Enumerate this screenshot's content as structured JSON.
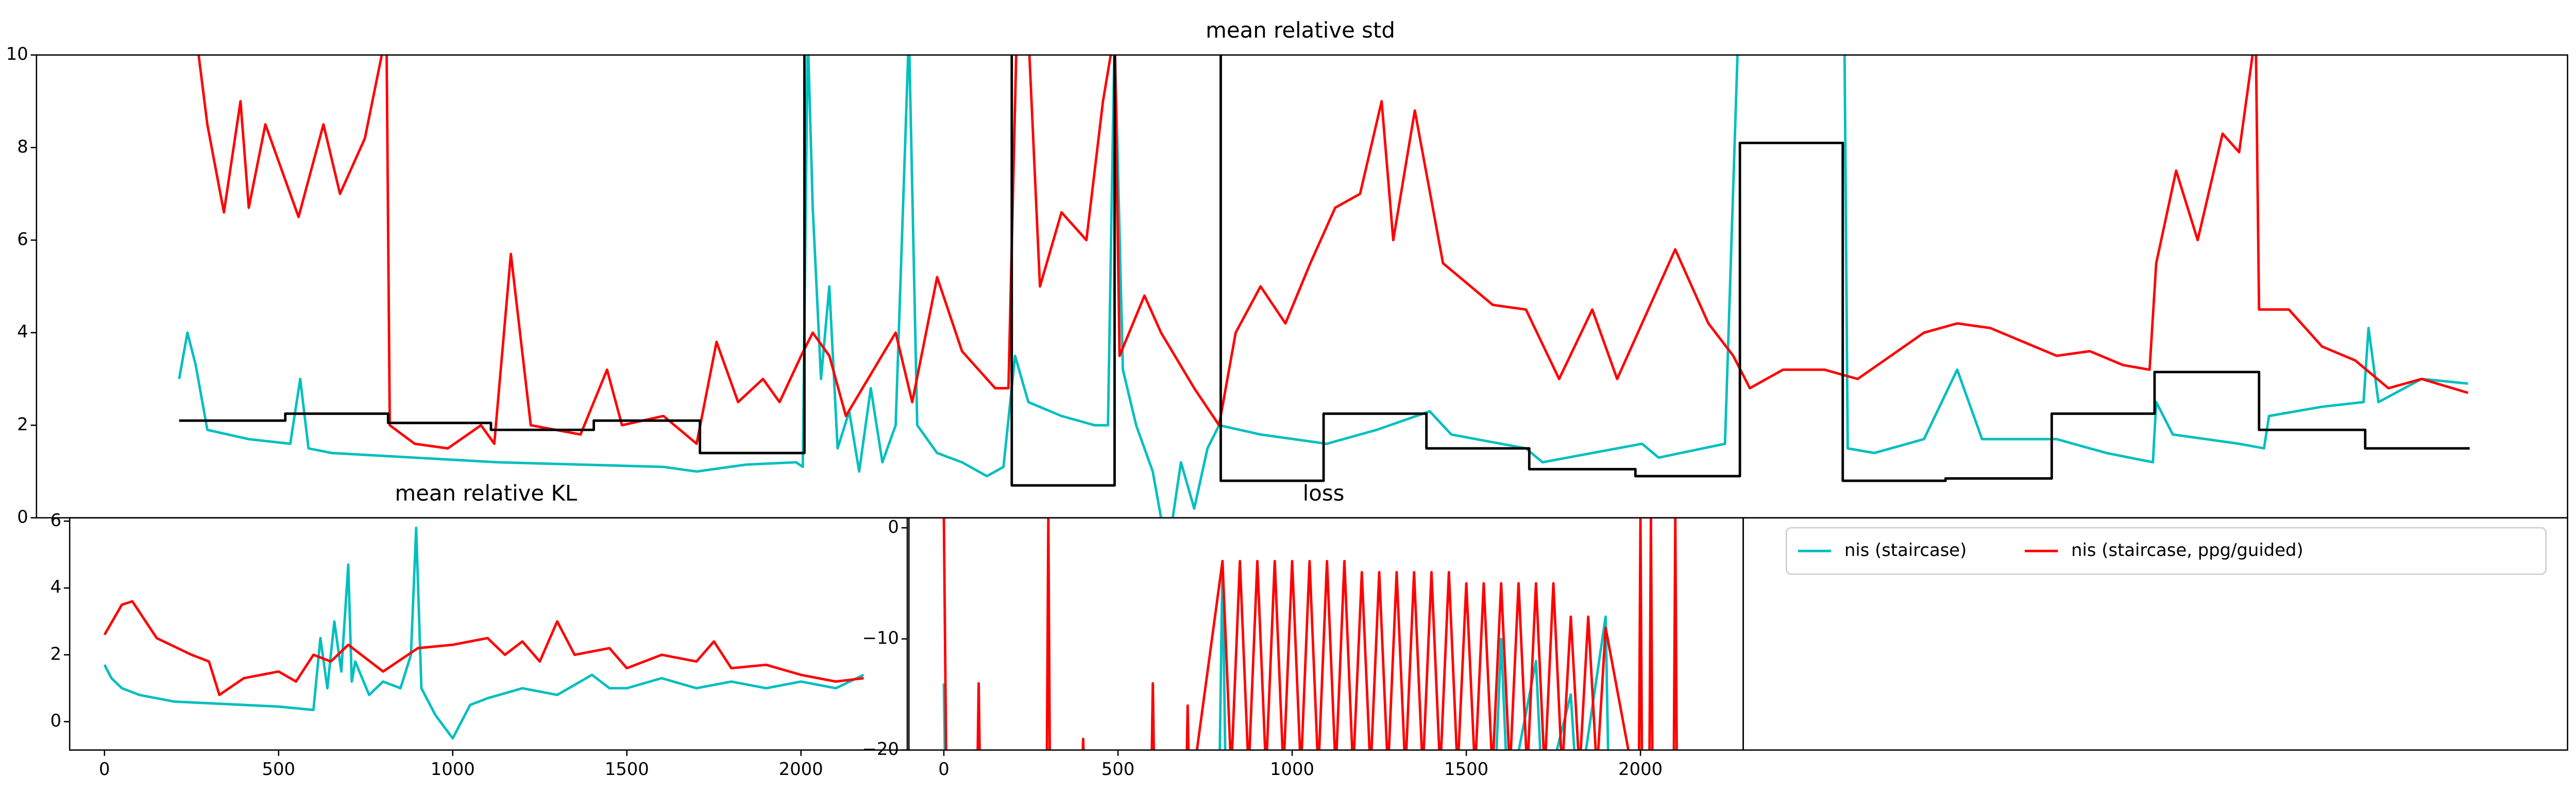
{
  "chart_data": [
    {
      "type": "line",
      "title": "mean relative std",
      "xlim": [
        0,
        1526
      ],
      "ylim": [
        0,
        10
      ],
      "yticks": [
        0,
        2,
        4,
        6,
        8,
        10
      ],
      "legend": true,
      "series": [
        {
          "name": "nis (staircase)",
          "color": "#00bfbf",
          "x": [
            86,
            91,
            96,
            103,
            128,
            153,
            159,
            164,
            178,
            228,
            278,
            328,
            378,
            398,
            428,
            458,
            462,
            465,
            468,
            473,
            478,
            483,
            490,
            496,
            503,
            510,
            518,
            526,
            531,
            543,
            558,
            573,
            583,
            590,
            598,
            618,
            638,
            646,
            650,
            655,
            663,
            673,
            678,
            683,
            690,
            698,
            706,
            713,
            738,
            778,
            808,
            840,
            853,
            898,
            908,
            968,
            978,
            1018,
            1026,
            1090,
            1092,
            1108,
            1138,
            1158,
            1173,
            1218,
            1248,
            1276,
            1278,
            1288,
            1328,
            1343,
            1346,
            1378,
            1403,
            1406,
            1412,
            1438,
            1466
          ],
          "values": [
            3.0,
            4.0,
            3.3,
            1.9,
            1.7,
            1.6,
            3.0,
            1.5,
            1.4,
            1.3,
            1.2,
            1.15,
            1.1,
            1.0,
            1.15,
            1.2,
            1.1,
            10.5,
            6.7,
            3.0,
            5.0,
            1.5,
            2.3,
            1.0,
            2.8,
            1.2,
            2.0,
            10.5,
            2.0,
            1.4,
            1.2,
            0.9,
            1.1,
            3.5,
            2.5,
            2.2,
            2.0,
            2.0,
            10.5,
            3.2,
            2.0,
            1.0,
            0.0,
            -0.5,
            1.2,
            0.2,
            1.5,
            2.0,
            1.8,
            1.6,
            1.9,
            2.3,
            1.8,
            1.5,
            1.2,
            1.6,
            1.3,
            1.6,
            10.5,
            10.5,
            1.5,
            1.4,
            1.7,
            3.2,
            1.7,
            1.7,
            1.4,
            1.2,
            2.5,
            1.8,
            1.6,
            1.5,
            2.2,
            2.4,
            2.5,
            4.1,
            2.5,
            3.0,
            2.9
          ]
        },
        {
          "name": "nis (staircase, ppg/guided)",
          "color": "#ff0000",
          "x": [
            96,
            103,
            113,
            123,
            128,
            138,
            148,
            158,
            173,
            183,
            198,
            211,
            213,
            228,
            248,
            268,
            276,
            286,
            298,
            328,
            344,
            353,
            378,
            398,
            410,
            423,
            438,
            448,
            461,
            468,
            478,
            488,
            498,
            518,
            528,
            543,
            558,
            578,
            586,
            591,
            598,
            605,
            618,
            633,
            643,
            650,
            653,
            668,
            678,
            698,
            713,
            723,
            738,
            753,
            768,
            783,
            798,
            811,
            818,
            831,
            848,
            878,
            898,
            918,
            938,
            953,
            978,
            988,
            1008,
            1023,
            1033,
            1053,
            1078,
            1098,
            1118,
            1138,
            1158,
            1178,
            1198,
            1218,
            1238,
            1258,
            1274,
            1278,
            1290,
            1303,
            1318,
            1328,
            1338,
            1340,
            1358,
            1378,
            1398,
            1418,
            1438,
            1466
          ],
          "values": [
            10.5,
            8.5,
            6.6,
            9.0,
            6.7,
            8.5,
            7.5,
            6.5,
            8.5,
            7.0,
            8.2,
            10.5,
            2.0,
            1.6,
            1.5,
            2.0,
            1.6,
            5.7,
            2.0,
            1.8,
            3.2,
            2.0,
            2.2,
            1.6,
            3.8,
            2.5,
            3.0,
            2.5,
            3.5,
            4.0,
            3.5,
            2.2,
            2.8,
            4.0,
            2.5,
            5.2,
            3.6,
            2.8,
            2.8,
            10.5,
            10.5,
            5.0,
            6.6,
            6.0,
            9.0,
            10.5,
            3.5,
            4.8,
            4.0,
            2.8,
            2.0,
            4.0,
            5.0,
            4.2,
            5.5,
            6.7,
            7.0,
            9.0,
            6.0,
            8.8,
            5.5,
            4.6,
            4.5,
            3.0,
            4.5,
            3.0,
            5.0,
            5.8,
            4.2,
            3.5,
            2.8,
            3.2,
            3.2,
            3.0,
            3.5,
            4.0,
            4.2,
            4.1,
            3.8,
            3.5,
            3.6,
            3.3,
            3.2,
            5.5,
            7.5,
            6.0,
            8.3,
            7.9,
            10.5,
            4.5,
            4.5,
            3.7,
            3.4,
            2.8,
            3.0,
            2.7
          ]
        },
        {
          "color": "#000000",
          "x": [
            86,
            150,
            150,
            212,
            212,
            274,
            274,
            336,
            336,
            400,
            400,
            463,
            463,
            588,
            588,
            650,
            650,
            714,
            714,
            776,
            776,
            838,
            838,
            900,
            900,
            964,
            964,
            1027,
            1027,
            1089,
            1089,
            1151,
            1151,
            1215,
            1215,
            1277,
            1277,
            1340,
            1340,
            1404,
            1404,
            1467
          ],
          "values": [
            2.1,
            2.1,
            2.25,
            2.25,
            2.05,
            2.05,
            1.9,
            1.9,
            2.1,
            2.1,
            1.4,
            1.4,
            12,
            12,
            0.7,
            0.7,
            12,
            12,
            0.8,
            0.8,
            2.25,
            2.25,
            1.5,
            1.5,
            1.05,
            1.05,
            0.9,
            0.9,
            8.1,
            8.1,
            0.8,
            0.8,
            0.85,
            0.85,
            2.25,
            2.25,
            3.15,
            3.15,
            1.9,
            1.9,
            1.5,
            1.5
          ]
        }
      ]
    },
    {
      "type": "line",
      "title": "mean relative KL",
      "xlim": [
        -100,
        2310
      ],
      "ylim": [
        -0.85,
        6.1
      ],
      "xticks": [
        0,
        500,
        1000,
        1500,
        2000
      ],
      "yticks": [
        0,
        2,
        4,
        6
      ],
      "series": [
        {
          "color": "#00bfbf",
          "x": [
            0,
            20,
            50,
            100,
            200,
            300,
            400,
            500,
            600,
            620,
            640,
            660,
            680,
            700,
            710,
            720,
            760,
            800,
            850,
            880,
            895,
            910,
            950,
            1000,
            1050,
            1100,
            1200,
            1300,
            1400,
            1450,
            1500,
            1600,
            1700,
            1800,
            1900,
            2000,
            2100,
            2180
          ],
          "values": [
            1.7,
            1.3,
            1.0,
            0.8,
            0.6,
            0.55,
            0.5,
            0.45,
            0.35,
            2.5,
            1.0,
            3.0,
            1.5,
            4.7,
            1.2,
            1.8,
            0.8,
            1.2,
            1.0,
            2.0,
            5.8,
            1.0,
            0.2,
            -0.5,
            0.5,
            0.7,
            1.0,
            0.8,
            1.4,
            1.0,
            1.0,
            1.3,
            1.0,
            1.2,
            1.0,
            1.2,
            1.0,
            1.4
          ]
        },
        {
          "color": "#ff0000",
          "x": [
            0,
            50,
            80,
            150,
            250,
            300,
            330,
            400,
            500,
            550,
            600,
            650,
            700,
            800,
            900,
            1000,
            1100,
            1150,
            1200,
            1250,
            1300,
            1350,
            1450,
            1500,
            1600,
            1700,
            1750,
            1800,
            1900,
            2000,
            2100,
            2180
          ],
          "values": [
            2.6,
            3.5,
            3.6,
            2.5,
            2.0,
            1.8,
            0.8,
            1.3,
            1.5,
            1.2,
            2.0,
            1.8,
            2.3,
            1.5,
            2.2,
            2.3,
            2.5,
            2.0,
            2.4,
            1.8,
            3.0,
            2.0,
            2.2,
            1.6,
            2.0,
            1.8,
            2.4,
            1.6,
            1.7,
            1.4,
            1.2,
            1.3
          ]
        }
      ]
    },
    {
      "type": "line",
      "title": "loss",
      "xlim": [
        -105,
        2295
      ],
      "ylim": [
        -20,
        0.9
      ],
      "xticks": [
        0,
        500,
        1000,
        1500,
        2000
      ],
      "yticks": [
        {
          "value": -20,
          "label": "−20"
        },
        {
          "value": -10,
          "label": "−10"
        },
        0
      ],
      "series": [
        {
          "color": "#00bfbf",
          "x": [
            0,
            5,
            95,
            100,
            105,
            395,
            400,
            405,
            595,
            600,
            605,
            790,
            800,
            810,
            1580,
            1600,
            1620,
            1700,
            1720,
            1800,
            1820,
            1900,
            1910
          ],
          "values": [
            -14,
            -25,
            -25,
            -15,
            -25,
            -25,
            -19,
            -25,
            -25,
            -14,
            -25,
            -25,
            -3,
            -25,
            -25,
            -10,
            -25,
            -12,
            -25,
            -15,
            -25,
            -8,
            -25
          ]
        },
        {
          "color": "#ff0000",
          "x": [
            0,
            8,
            95,
            100,
            105,
            295,
            300,
            305,
            395,
            400,
            405,
            595,
            600,
            605,
            695,
            700,
            705,
            800,
            825,
            850,
            875,
            900,
            925,
            950,
            975,
            1000,
            1025,
            1050,
            1075,
            1100,
            1125,
            1150,
            1175,
            1200,
            1225,
            1250,
            1275,
            1300,
            1325,
            1350,
            1375,
            1400,
            1425,
            1450,
            1475,
            1500,
            1525,
            1550,
            1575,
            1600,
            1625,
            1650,
            1675,
            1700,
            1725,
            1750,
            1775,
            1800,
            1825,
            1850,
            1875,
            1900,
            1995,
            2000,
            2005,
            2025,
            2030,
            2035,
            2095,
            2100,
            2105
          ],
          "values": [
            1,
            -25,
            -25,
            -14,
            -25,
            -25,
            1,
            -25,
            -25,
            -19,
            -25,
            -25,
            -14,
            -25,
            -25,
            -16,
            -25,
            -3,
            -22,
            -3,
            -22,
            -3,
            -22,
            -3,
            -22,
            -3,
            -22,
            -3,
            -22,
            -3,
            -22,
            -3,
            -22,
            -4,
            -22,
            -4,
            -22,
            -4,
            -22,
            -4,
            -22,
            -4,
            -22,
            -4,
            -22,
            -5,
            -22,
            -5,
            -22,
            -5,
            -22,
            -5,
            -22,
            -5,
            -22,
            -5,
            -22,
            -8,
            -22,
            -8,
            -22,
            -9,
            -25,
            1,
            -25,
            -25,
            1,
            -25,
            -25,
            1,
            -25
          ]
        }
      ]
    }
  ]
}
